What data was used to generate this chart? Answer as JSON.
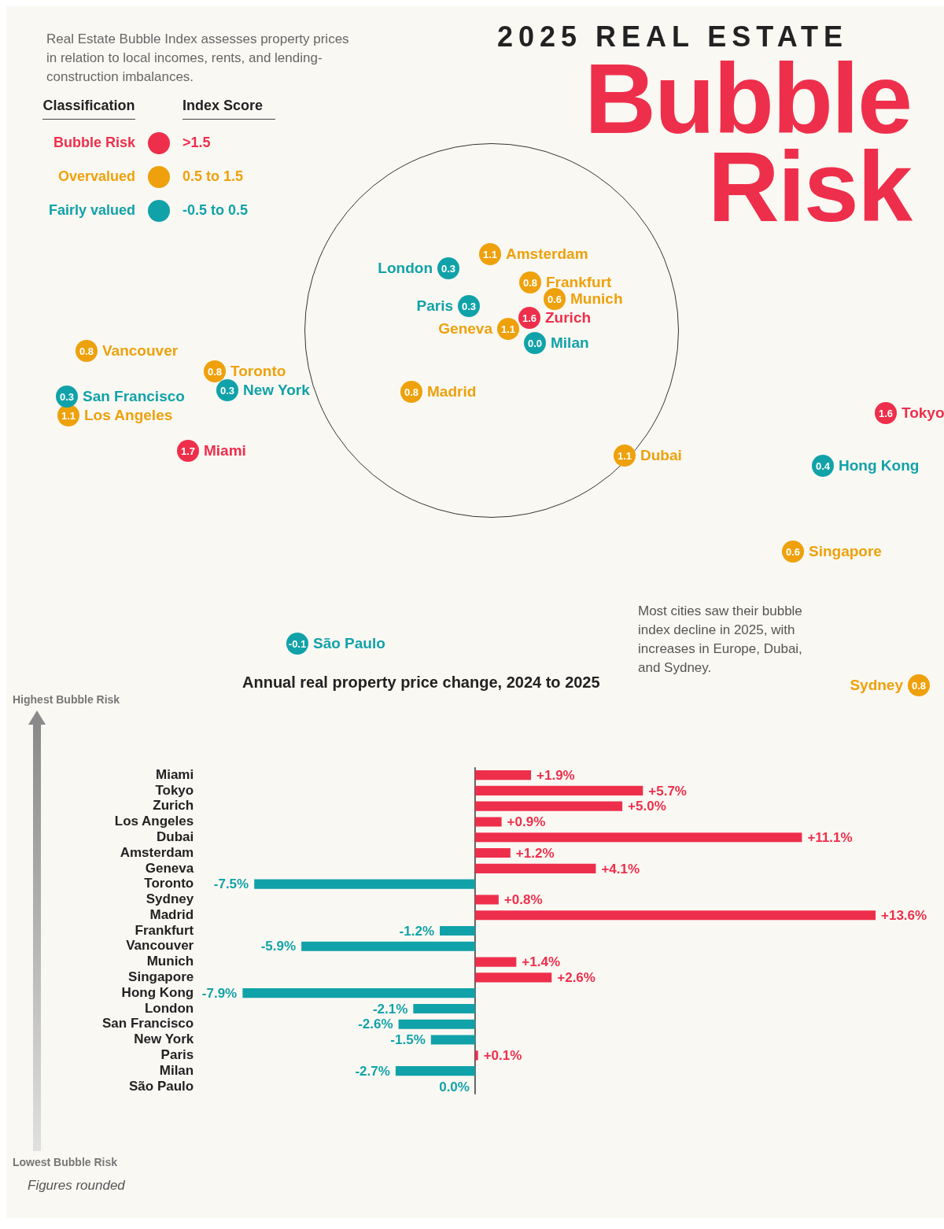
{
  "chart_data": [
    {
      "type": "other",
      "categories": [
        "Bubble Risk",
        "Overvalued",
        "Fairly valued"
      ],
      "colors": [
        "#ee2f4b",
        "#eea10c",
        "#11a2a9"
      ],
      "annotations": [
        "Classification",
        "Index Score",
        ">1.5",
        "0.5 to 1.5",
        "-0.5 to 0.5"
      ]
    },
    {
      "type": "other",
      "subtitle": "2025 REAL ESTATE",
      "title": "Bubble Risk",
      "categories": [
        "Miami",
        "Tokyo",
        "Zurich",
        "Los Angeles",
        "Dubai",
        "Amsterdam",
        "Geneva",
        "Toronto",
        "Sydney",
        "Madrid",
        "Frankfurt",
        "Vancouver",
        "Munich",
        "Singapore",
        "Hong Kong",
        "London",
        "San Francisco",
        "New York",
        "Paris",
        "Milan",
        "São Paulo"
      ],
      "values": [
        1.7,
        1.6,
        1.6,
        1.1,
        1.1,
        1.1,
        1.1,
        0.8,
        0.8,
        0.8,
        0.8,
        0.8,
        0.6,
        0.6,
        0.4,
        0.3,
        0.3,
        0.3,
        0.3,
        0.0,
        -0.1
      ],
      "value_labels": [
        "1.7",
        "1.6",
        "1.6",
        "1.1",
        "1.1",
        "1.1",
        "1.1",
        "0.8",
        "0.8",
        "0.8",
        "0.8",
        "0.8",
        "0.6",
        "0.6",
        "0.4",
        "0.3",
        "0.3",
        "0.3",
        "0.3",
        "0.0",
        "-0.1"
      ],
      "colors": [
        "#ee2f4b",
        "#ee2f4b",
        "#ee2f4b",
        "#eea10c",
        "#eea10c",
        "#eea10c",
        "#eea10c",
        "#eea10c",
        "#eea10c",
        "#eea10c",
        "#eea10c",
        "#eea10c",
        "#eea10c",
        "#eea10c",
        "#11a2a9",
        "#11a2a9",
        "#11a2a9",
        "#11a2a9",
        "#11a2a9",
        "#11a2a9",
        "#11a2a9"
      ],
      "annotations": [
        "Real Estate Bubble Index assesses property prices in relation to local incomes, rents, and lending-construction imbalances.",
        "Most cities saw their bubble index decline in 2025, with increases in Europe, Dubai, and Sydney."
      ]
    },
    {
      "type": "bar",
      "orientation": "horizontal",
      "title": "Annual real property price change, 2024 to 2025",
      "categories": [
        "Miami",
        "Tokyo",
        "Zurich",
        "Los Angeles",
        "Dubai",
        "Amsterdam",
        "Geneva",
        "Toronto",
        "Sydney",
        "Madrid",
        "Frankfurt",
        "Vancouver",
        "Munich",
        "Singapore",
        "Hong Kong",
        "London",
        "San Francisco",
        "New York",
        "Paris",
        "Milan",
        "São Paulo"
      ],
      "values": [
        1.9,
        5.7,
        5.0,
        0.9,
        11.1,
        1.2,
        4.1,
        -7.5,
        0.8,
        13.6,
        -1.2,
        -5.9,
        1.4,
        2.6,
        -7.9,
        -2.1,
        -2.6,
        -1.5,
        0.1,
        -2.7,
        0.0
      ],
      "colors": [
        "#ee2f4b",
        "#ee2f4b",
        "#ee2f4b",
        "#ee2f4b",
        "#ee2f4b",
        "#ee2f4b",
        "#ee2f4b",
        "#11a2a9",
        "#ee2f4b",
        "#ee2f4b",
        "#11a2a9",
        "#11a2a9",
        "#ee2f4b",
        "#ee2f4b",
        "#11a2a9",
        "#11a2a9",
        "#11a2a9",
        "#11a2a9",
        "#ee2f4b",
        "#11a2a9",
        "#11a2a9"
      ],
      "value_labels": [
        "+1.9%",
        "+5.7%",
        "+5.0%",
        "+0.9%",
        "+11.1%",
        "+1.2%",
        "+4.1%",
        "-7.5%",
        "+0.8%",
        "+13.6%",
        "-1.2%",
        "-5.9%",
        "+1.4%",
        "+2.6%",
        "-7.9%",
        "-2.1%",
        "-2.6%",
        "-1.5%",
        "+0.1%",
        "-2.7%",
        "0.0%"
      ],
      "ref_lines": [
        {
          "axis": "x",
          "value": 0,
          "color": "#333333"
        }
      ],
      "annotations": [
        "Highest Bubble Risk",
        "Lowest Bubble Risk",
        "Figures rounded"
      ]
    }
  ]
}
